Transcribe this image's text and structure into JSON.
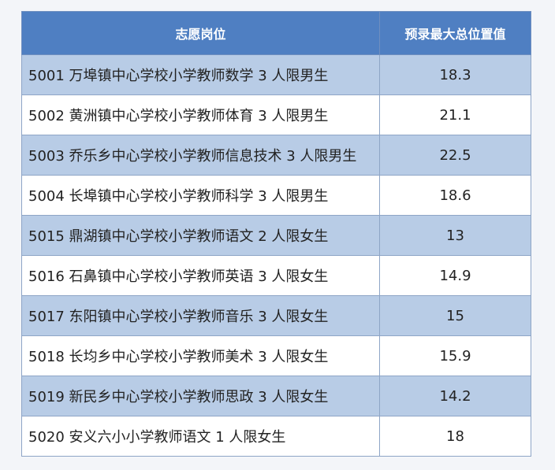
{
  "table": {
    "headers": [
      "志愿岗位",
      "预录最大总位置值"
    ],
    "rows": [
      {
        "position": "5001 万埠镇中心学校小学教师数学 3 人限男生",
        "value": "18.3"
      },
      {
        "position": "5002 黄洲镇中心学校小学教师体育 3 人限男生",
        "value": "21.1"
      },
      {
        "position": "5003 乔乐乡中心学校小学教师信息技术 3 人限男生",
        "value": "22.5"
      },
      {
        "position": "5004 长埠镇中心学校小学教师科学 3 人限男生",
        "value": "18.6"
      },
      {
        "position": "5015 鼎湖镇中心学校小学教师语文 2 人限女生",
        "value": "13"
      },
      {
        "position": "5016 石鼻镇中心学校小学教师英语 3 人限女生",
        "value": "14.9"
      },
      {
        "position": "5017 东阳镇中心学校小学教师音乐 3 人限女生",
        "value": "15"
      },
      {
        "position": "5018 长均乡中心学校小学教师美术 3 人限女生",
        "value": "15.9"
      },
      {
        "position": "5019 新民乡中心学校小学教师思政 3 人限女生",
        "value": "14.2"
      },
      {
        "position": "5020 安义六小小学教师语文 1 人限女生",
        "value": "18"
      }
    ]
  },
  "colors": {
    "header_bg": "#4f7fc2",
    "row_alt_bg": "#b8cce6",
    "row_bg": "#ffffff"
  }
}
